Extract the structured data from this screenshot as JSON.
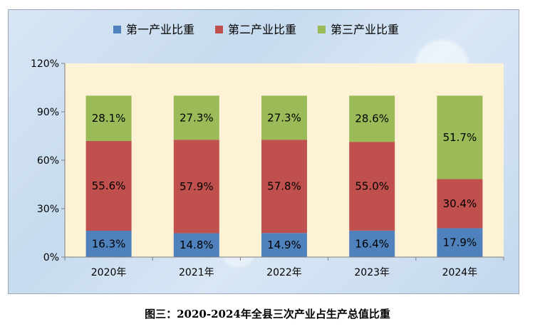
{
  "caption": "图三：2020-2024年全县三次产业占生产总值比重",
  "colors": {
    "series": [
      "#4f81bd",
      "#c0504d",
      "#9bbb59"
    ],
    "plot_background": "#fdf1d6"
  },
  "chart_data": {
    "type": "bar",
    "stacked": true,
    "categories": [
      "2020年",
      "2021年",
      "2022年",
      "2023年",
      "2024年"
    ],
    "series": [
      {
        "name": "第一产业比重",
        "values": [
          16.3,
          14.8,
          14.9,
          16.4,
          17.9
        ],
        "labels": [
          "16.3%",
          "14.8%",
          "14.9%",
          "16.4%",
          "17.9%"
        ]
      },
      {
        "name": "第二产业比重",
        "values": [
          55.6,
          57.9,
          57.8,
          55.0,
          30.4
        ],
        "labels": [
          "55.6%",
          "57.9%",
          "57.8%",
          "55.0%",
          "30.4%"
        ]
      },
      {
        "name": "第三产业比重",
        "values": [
          28.1,
          27.3,
          27.3,
          28.6,
          51.7
        ],
        "labels": [
          "28.1%",
          "27.3%",
          "27.3%",
          "28.6%",
          "51.7%"
        ]
      }
    ],
    "y_ticks": [
      0,
      30,
      60,
      90,
      120
    ],
    "y_tick_labels": [
      "0%",
      "30%",
      "60%",
      "90%",
      "120%"
    ],
    "ylim": [
      0,
      120
    ],
    "legend_position": "top",
    "grid": false
  }
}
